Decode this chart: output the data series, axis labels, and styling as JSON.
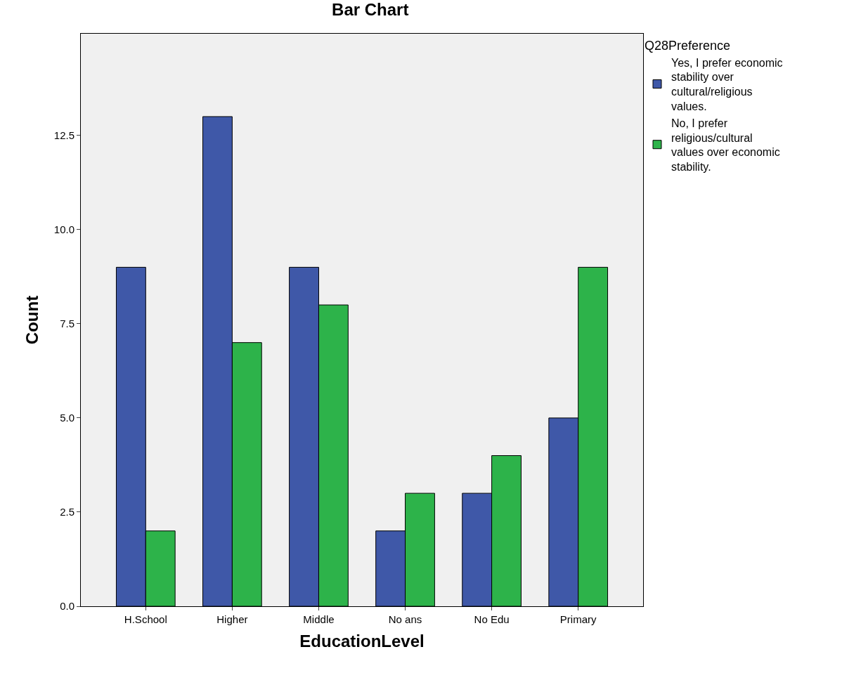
{
  "chart_data": {
    "type": "bar",
    "title": "Bar Chart",
    "xlabel": "EducationLevel",
    "ylabel": "Count",
    "legend_title": "Q28Preference",
    "categories": [
      "H.School",
      "Higher",
      "Middle",
      "No ans",
      "No Edu",
      "Primary"
    ],
    "series": [
      {
        "name": "Yes, I prefer economic stability over cultural/religious values.",
        "color": "#3f58a8",
        "values": [
          9,
          13,
          9,
          2,
          3,
          5
        ]
      },
      {
        "name": "No, I prefer religious/cultural values over economic stability.",
        "color": "#2db34a",
        "values": [
          2,
          7,
          8,
          3,
          4,
          9
        ]
      }
    ],
    "ylim": [
      0,
      15.2
    ],
    "yticks": [
      {
        "value": 0,
        "label": "0.0"
      },
      {
        "value": 2.5,
        "label": "2.5"
      },
      {
        "value": 5,
        "label": "5.0"
      },
      {
        "value": 7.5,
        "label": "7.5"
      },
      {
        "value": 10,
        "label": "10.0"
      },
      {
        "value": 12.5,
        "label": "12.5"
      }
    ],
    "grid": false,
    "legend": "top right"
  }
}
